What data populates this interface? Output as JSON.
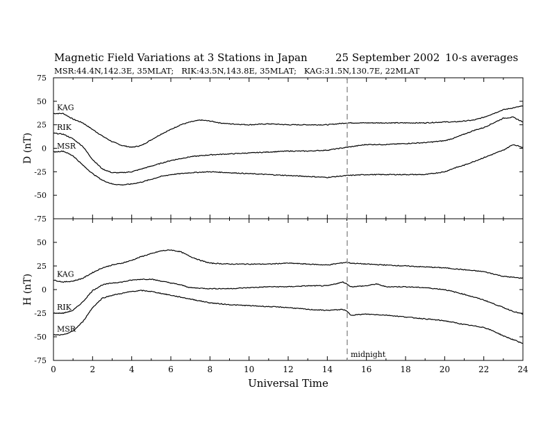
{
  "title": "Magnetic Field Variations at 3 Stations in Japan",
  "date": "25 September 2002",
  "averaging": "10-s averages",
  "stations_line": "MSR:44.4N,142.3E, 35MLAT;   RIK:43.5N,143.8E, 35MLAT;   KAG:31.5N,130.7E, 22MLAT",
  "midnight_label": "midnight",
  "chart_data": [
    {
      "type": "line",
      "panel": "top",
      "ylabel": "D (nT)",
      "ylim": [
        -75,
        75
      ],
      "yticks": [
        75,
        50,
        25,
        0,
        -25,
        -50,
        -75
      ],
      "xlim": [
        0,
        24
      ],
      "grid": false,
      "series": [
        {
          "name": "KAG",
          "x": [
            0,
            0.5,
            1,
            1.5,
            2,
            2.5,
            3,
            3.5,
            4,
            4.5,
            5,
            5.5,
            6,
            6.5,
            7,
            7.5,
            8,
            8.5,
            9,
            10,
            11,
            12,
            13,
            14,
            15,
            16,
            17,
            18,
            19,
            20,
            20.5,
            21,
            21.5,
            22,
            22.5,
            23,
            23.5,
            24
          ],
          "y": [
            37,
            37,
            31,
            27,
            20,
            13,
            7,
            3,
            1,
            3,
            9,
            15,
            20,
            25,
            28,
            30,
            29,
            27,
            26,
            25,
            26,
            25,
            25,
            25,
            27,
            27,
            27,
            27,
            27,
            28,
            28,
            29,
            30,
            33,
            37,
            41,
            43,
            45
          ]
        },
        {
          "name": "RIK",
          "x": [
            0,
            0.5,
            1,
            1.5,
            2,
            2.5,
            3,
            3.5,
            4,
            4.5,
            5,
            5.5,
            6,
            6.5,
            7,
            7.5,
            8,
            9,
            10,
            11,
            12,
            13,
            14,
            15,
            16,
            17,
            18,
            19,
            20,
            20.5,
            21,
            21.5,
            22,
            22.5,
            23,
            23.5,
            24
          ],
          "y": [
            16,
            15,
            10,
            2,
            -12,
            -22,
            -26,
            -26,
            -25,
            -22,
            -19,
            -16,
            -13,
            -11,
            -9,
            -8,
            -7,
            -6,
            -5,
            -4,
            -3,
            -3,
            -2,
            1,
            4,
            4,
            5,
            6,
            8,
            11,
            15,
            19,
            22,
            27,
            32,
            33,
            28
          ]
        },
        {
          "name": "MSR",
          "x": [
            0,
            0.5,
            1,
            1.5,
            2,
            2.5,
            3,
            3.5,
            4,
            4.5,
            5,
            5.5,
            6,
            6.5,
            7,
            8,
            9,
            10,
            11,
            12,
            13,
            14,
            15,
            16,
            17,
            18,
            19,
            20,
            20.5,
            21,
            21.5,
            22,
            22.5,
            23,
            23.5,
            24
          ],
          "y": [
            -4,
            -3,
            -8,
            -18,
            -27,
            -34,
            -38,
            -39,
            -38,
            -36,
            -33,
            -30,
            -28,
            -27,
            -26,
            -25,
            -26,
            -27,
            -28,
            -29,
            -30,
            -31,
            -29,
            -28,
            -28,
            -28,
            -28,
            -25,
            -21,
            -18,
            -14,
            -10,
            -6,
            -2,
            4,
            1
          ]
        }
      ]
    },
    {
      "type": "line",
      "panel": "bottom",
      "ylabel": "H (nT)",
      "ylim": [
        -75,
        75
      ],
      "yticks": [
        50,
        25,
        0,
        -25,
        -50,
        -75
      ],
      "xlim": [
        0,
        24
      ],
      "xticks": [
        0,
        2,
        4,
        6,
        8,
        10,
        12,
        14,
        16,
        18,
        20,
        22,
        24
      ],
      "xlabel": "Universal Time",
      "grid": false,
      "series": [
        {
          "name": "KAG",
          "x": [
            0,
            0.5,
            1,
            1.5,
            2,
            2.5,
            3,
            3.5,
            4,
            4.5,
            5,
            5.5,
            6,
            6.5,
            7,
            7.5,
            8,
            9,
            10,
            11,
            12,
            13,
            14,
            15,
            15.2,
            16,
            17,
            18,
            19,
            20,
            21,
            22,
            23,
            24
          ],
          "y": [
            10,
            8,
            9,
            12,
            18,
            23,
            26,
            28,
            31,
            35,
            38,
            41,
            42,
            40,
            35,
            31,
            28,
            27,
            27,
            27,
            28,
            27,
            26,
            29,
            28,
            27,
            26,
            25,
            24,
            23,
            21,
            19,
            14,
            12
          ]
        },
        {
          "name": "RIK",
          "x": [
            0,
            0.5,
            1,
            1.5,
            2,
            2.5,
            3,
            3.5,
            4,
            4.5,
            5,
            5.5,
            6,
            6.5,
            7,
            8,
            9,
            10,
            11,
            12,
            13,
            14,
            14.8,
            15,
            15.2,
            16,
            16.5,
            17,
            18,
            19,
            20,
            21,
            22,
            22.5,
            23,
            23.5,
            24
          ],
          "y": [
            -25,
            -25,
            -22,
            -13,
            -1,
            5,
            7,
            8,
            10,
            11,
            11,
            9,
            7,
            5,
            2,
            1,
            1,
            2,
            3,
            3,
            4,
            4,
            8,
            6,
            3,
            4,
            6,
            3,
            3,
            2,
            0,
            -5,
            -11,
            -15,
            -19,
            -23,
            -26
          ]
        },
        {
          "name": "MSR",
          "x": [
            0,
            0.5,
            1,
            1.5,
            2,
            2.5,
            3,
            3.5,
            4,
            4.5,
            5,
            5.5,
            6,
            6.5,
            7,
            8,
            9,
            10,
            11,
            12,
            13,
            14,
            14.8,
            15,
            15.2,
            16,
            17,
            18,
            19,
            20,
            21,
            22,
            22.5,
            23,
            23.5,
            24
          ],
          "y": [
            -48,
            -48,
            -44,
            -34,
            -19,
            -9,
            -6,
            -4,
            -2,
            -1,
            -2,
            -4,
            -6,
            -8,
            -10,
            -14,
            -16,
            -17,
            -18,
            -19,
            -21,
            -22,
            -21,
            -23,
            -27,
            -26,
            -27,
            -29,
            -31,
            -33,
            -37,
            -40,
            -44,
            -49,
            -53,
            -57
          ]
        }
      ]
    }
  ]
}
